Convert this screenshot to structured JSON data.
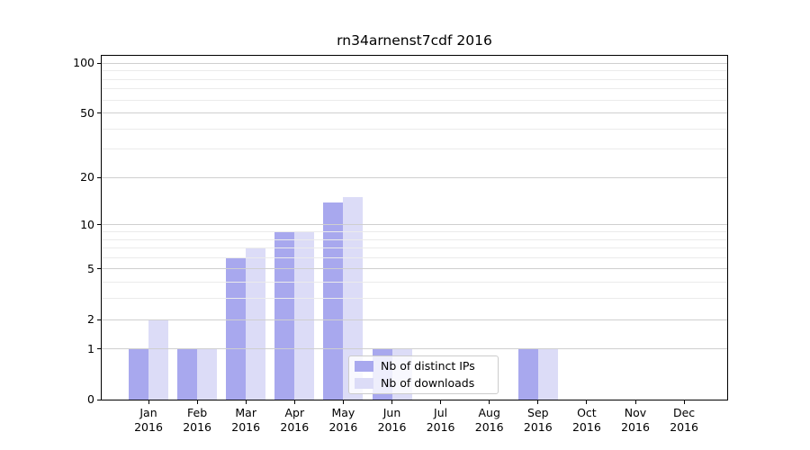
{
  "chart_data": {
    "type": "bar",
    "title": "rn34arnenst7cdf 2016",
    "x": {
      "months": [
        "Jan",
        "Feb",
        "Mar",
        "Apr",
        "May",
        "Jun",
        "Jul",
        "Aug",
        "Sep",
        "Oct",
        "Nov",
        "Dec"
      ],
      "year": "2016"
    },
    "series": [
      {
        "name": "Nb of distinct IPs",
        "color": "#a8a8ee",
        "values": [
          1,
          1,
          6,
          9,
          14,
          1,
          0,
          0,
          1,
          0,
          0,
          0
        ]
      },
      {
        "name": "Nb of downloads",
        "color": "#dcdcf7",
        "values": [
          2,
          1,
          7,
          9,
          15,
          1,
          0,
          0,
          1,
          0,
          0,
          0
        ]
      }
    ],
    "y_axis": {
      "scale": "log1p",
      "tick_labels": [
        "100",
        "50",
        "20",
        "10",
        "5",
        "2",
        "1",
        "0"
      ],
      "tick_values": [
        100,
        50,
        20,
        10,
        5,
        2,
        1,
        0
      ],
      "minor_gridline_values": [
        3,
        4,
        6,
        7,
        8,
        9,
        30,
        40,
        60,
        70,
        80,
        90
      ],
      "range": [
        0,
        114
      ]
    },
    "legend": {
      "location": "lower center"
    },
    "grid": true
  },
  "colors": {
    "background": "#ffffff",
    "bar_distinct_ips": "#a8a8ee",
    "bar_downloads": "#dcdcf7",
    "major_grid": "#cfcfcf",
    "minor_grid": "#ebebeb",
    "axis": "#000000",
    "legend_border": "#cccccc"
  }
}
